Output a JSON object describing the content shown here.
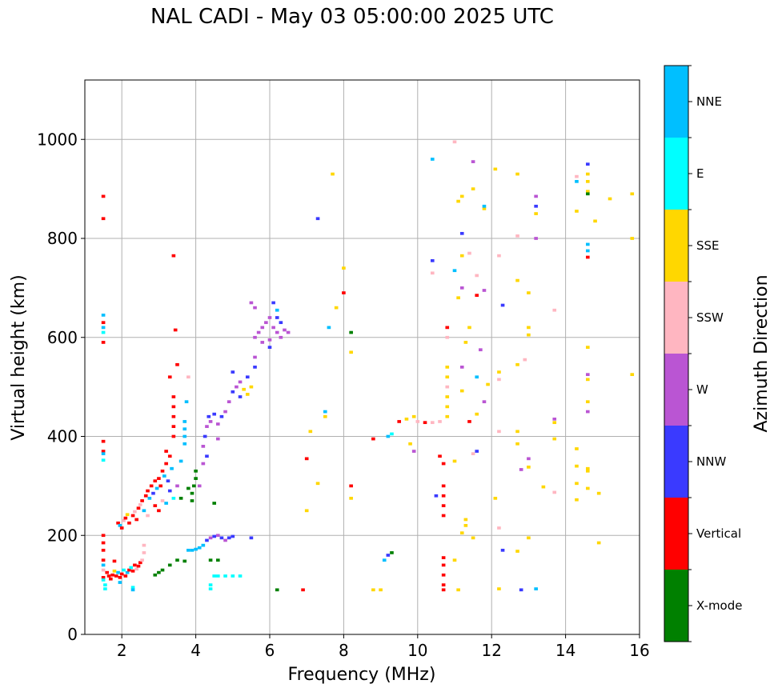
{
  "chart_data": {
    "type": "scatter",
    "title": "NAL CADI - May 03 05:00:00 2025 UTC",
    "xlabel": "Frequency (MHz)",
    "ylabel": "Virtual height (km)",
    "xlim": [
      1,
      16
    ],
    "ylim": [
      0,
      1120
    ],
    "xticks": [
      2,
      4,
      6,
      8,
      10,
      12,
      14,
      16
    ],
    "yticks": [
      0,
      200,
      400,
      600,
      800,
      1000
    ],
    "grid": true,
    "colorbar": {
      "label": "Azimuth Direction",
      "categories": [
        "X-mode",
        "Vertical",
        "NNW",
        "W",
        "SSW",
        "SSE",
        "E",
        "NNE"
      ],
      "colors": [
        "#008000",
        "#ff0000",
        "#3a3aff",
        "#ba55d3",
        "#ffb6c1",
        "#ffd700",
        "#00ffff",
        "#00bfff"
      ]
    },
    "point_format": [
      "frequency_mhz",
      "height_km",
      "direction_index"
    ],
    "points": [
      [
        1.5,
        885,
        1
      ],
      [
        1.5,
        840,
        1
      ],
      [
        1.5,
        645,
        7
      ],
      [
        1.5,
        630,
        1
      ],
      [
        1.5,
        620,
        7
      ],
      [
        1.5,
        610,
        6
      ],
      [
        1.5,
        590,
        1
      ],
      [
        1.5,
        390,
        1
      ],
      [
        1.5,
        370,
        1
      ],
      [
        1.5,
        365,
        7
      ],
      [
        1.5,
        352,
        6
      ],
      [
        1.5,
        200,
        1
      ],
      [
        1.5,
        185,
        1
      ],
      [
        1.5,
        170,
        1
      ],
      [
        1.5,
        150,
        1
      ],
      [
        1.5,
        140,
        7
      ],
      [
        1.5,
        130,
        4
      ],
      [
        1.5,
        115,
        1
      ],
      [
        1.5,
        110,
        6
      ],
      [
        1.55,
        100,
        6
      ],
      [
        1.55,
        92,
        6
      ],
      [
        1.6,
        125,
        1
      ],
      [
        1.65,
        118,
        1
      ],
      [
        1.7,
        112,
        1
      ],
      [
        1.75,
        120,
        1
      ],
      [
        1.8,
        128,
        5
      ],
      [
        1.85,
        118,
        1
      ],
      [
        1.9,
        125,
        7
      ],
      [
        1.95,
        115,
        1
      ],
      [
        2.0,
        122,
        1
      ],
      [
        2.05,
        130,
        6
      ],
      [
        2.1,
        118,
        1
      ],
      [
        2.15,
        125,
        7
      ],
      [
        2.2,
        130,
        1
      ],
      [
        2.25,
        135,
        6
      ],
      [
        2.3,
        128,
        1
      ],
      [
        2.35,
        140,
        1
      ],
      [
        2.4,
        132,
        4
      ],
      [
        2.45,
        138,
        1
      ],
      [
        2.5,
        145,
        1
      ],
      [
        2.55,
        150,
        4
      ],
      [
        2.6,
        165,
        4
      ],
      [
        2.6,
        180,
        4
      ],
      [
        1.8,
        148,
        1
      ],
      [
        1.95,
        105,
        7
      ],
      [
        2.3,
        95,
        6
      ],
      [
        2.3,
        90,
        7
      ],
      [
        1.9,
        225,
        1
      ],
      [
        1.95,
        220,
        7
      ],
      [
        2.0,
        215,
        1
      ],
      [
        2.05,
        230,
        4
      ],
      [
        2.1,
        235,
        1
      ],
      [
        2.15,
        242,
        5
      ],
      [
        2.2,
        225,
        1
      ],
      [
        2.3,
        240,
        1
      ],
      [
        2.35,
        248,
        4
      ],
      [
        2.4,
        232,
        1
      ],
      [
        2.45,
        255,
        1
      ],
      [
        2.5,
        262,
        4
      ],
      [
        2.55,
        270,
        1
      ],
      [
        2.6,
        250,
        7
      ],
      [
        2.65,
        280,
        1
      ],
      [
        2.7,
        290,
        1
      ],
      [
        2.75,
        275,
        7
      ],
      [
        2.8,
        300,
        1
      ],
      [
        2.85,
        285,
        2
      ],
      [
        2.9,
        310,
        1
      ],
      [
        2.95,
        295,
        7
      ],
      [
        3.0,
        315,
        1
      ],
      [
        3.05,
        300,
        1
      ],
      [
        3.1,
        330,
        1
      ],
      [
        3.15,
        320,
        7
      ],
      [
        3.2,
        345,
        1
      ],
      [
        3.25,
        310,
        2
      ],
      [
        3.3,
        360,
        1
      ],
      [
        3.35,
        335,
        7
      ],
      [
        2.7,
        240,
        4
      ],
      [
        2.9,
        260,
        1
      ],
      [
        3.0,
        250,
        1
      ],
      [
        3.1,
        270,
        4
      ],
      [
        3.2,
        265,
        7
      ],
      [
        3.3,
        290,
        2
      ],
      [
        3.4,
        275,
        6
      ],
      [
        3.5,
        300,
        3
      ],
      [
        3.4,
        400,
        1
      ],
      [
        3.4,
        420,
        1
      ],
      [
        3.4,
        440,
        1
      ],
      [
        3.4,
        460,
        1
      ],
      [
        3.4,
        480,
        1
      ],
      [
        3.5,
        545,
        1
      ],
      [
        3.45,
        615,
        1
      ],
      [
        3.4,
        765,
        1
      ],
      [
        3.3,
        520,
        1
      ],
      [
        3.2,
        370,
        1
      ],
      [
        3.7,
        385,
        7
      ],
      [
        3.7,
        400,
        7
      ],
      [
        3.7,
        415,
        7
      ],
      [
        3.7,
        430,
        7
      ],
      [
        3.6,
        350,
        7
      ],
      [
        3.75,
        470,
        7
      ],
      [
        3.8,
        520,
        4
      ],
      [
        3.9,
        270,
        0
      ],
      [
        3.9,
        285,
        0
      ],
      [
        3.95,
        300,
        0
      ],
      [
        4.0,
        315,
        0
      ],
      [
        4.0,
        330,
        0
      ],
      [
        3.8,
        295,
        0
      ],
      [
        3.6,
        275,
        0
      ],
      [
        4.5,
        265,
        0
      ],
      [
        4.1,
        300,
        3
      ],
      [
        3.0,
        125,
        0
      ],
      [
        3.1,
        130,
        0
      ],
      [
        3.3,
        140,
        0
      ],
      [
        3.5,
        150,
        0
      ],
      [
        3.7,
        148,
        0
      ],
      [
        2.9,
        120,
        0
      ],
      [
        3.8,
        170,
        7
      ],
      [
        3.9,
        170,
        7
      ],
      [
        4.0,
        172,
        7
      ],
      [
        4.1,
        175,
        7
      ],
      [
        4.2,
        180,
        7
      ],
      [
        4.3,
        190,
        2
      ],
      [
        4.4,
        195,
        3
      ],
      [
        4.5,
        198,
        2
      ],
      [
        4.6,
        200,
        3
      ],
      [
        4.7,
        195,
        2
      ],
      [
        4.8,
        190,
        3
      ],
      [
        4.9,
        195,
        2
      ],
      [
        5.0,
        198,
        2
      ],
      [
        5.5,
        195,
        2
      ],
      [
        4.4,
        150,
        0
      ],
      [
        4.6,
        150,
        0
      ],
      [
        4.5,
        118,
        6
      ],
      [
        4.6,
        118,
        6
      ],
      [
        4.8,
        118,
        6
      ],
      [
        5.0,
        118,
        6
      ],
      [
        5.2,
        118,
        6
      ],
      [
        4.4,
        100,
        6
      ],
      [
        4.4,
        92,
        6
      ],
      [
        4.2,
        380,
        3
      ],
      [
        4.25,
        400,
        2
      ],
      [
        4.3,
        420,
        3
      ],
      [
        4.35,
        440,
        2
      ],
      [
        4.4,
        430,
        3
      ],
      [
        4.5,
        445,
        2
      ],
      [
        4.6,
        425,
        3
      ],
      [
        4.7,
        440,
        2
      ],
      [
        4.8,
        450,
        3
      ],
      [
        4.3,
        360,
        2
      ],
      [
        4.2,
        345,
        3
      ],
      [
        4.6,
        395,
        3
      ],
      [
        4.9,
        470,
        3
      ],
      [
        5.0,
        490,
        2
      ],
      [
        5.1,
        500,
        3
      ],
      [
        5.2,
        510,
        3
      ],
      [
        5.3,
        495,
        5
      ],
      [
        5.4,
        485,
        5
      ],
      [
        5.5,
        500,
        5
      ],
      [
        5.2,
        480,
        2
      ],
      [
        5.4,
        520,
        2
      ],
      [
        5.6,
        560,
        3
      ],
      [
        5.0,
        530,
        2
      ],
      [
        5.6,
        540,
        2
      ],
      [
        5.6,
        600,
        3
      ],
      [
        5.7,
        610,
        3
      ],
      [
        5.8,
        620,
        3
      ],
      [
        5.9,
        630,
        3
      ],
      [
        6.0,
        640,
        3
      ],
      [
        6.1,
        620,
        3
      ],
      [
        6.2,
        610,
        3
      ],
      [
        6.3,
        600,
        3
      ],
      [
        5.8,
        590,
        3
      ],
      [
        6.0,
        595,
        3
      ],
      [
        6.2,
        640,
        2
      ],
      [
        6.4,
        615,
        3
      ],
      [
        6.5,
        610,
        3
      ],
      [
        5.6,
        660,
        3
      ],
      [
        6.1,
        670,
        2
      ],
      [
        6.2,
        655,
        7
      ],
      [
        5.5,
        670,
        3
      ],
      [
        6.3,
        630,
        2
      ],
      [
        6.0,
        580,
        2
      ],
      [
        7.3,
        840,
        2
      ],
      [
        7.7,
        930,
        5
      ],
      [
        7.6,
        620,
        7
      ],
      [
        7.8,
        660,
        5
      ],
      [
        8.0,
        740,
        5
      ],
      [
        8.0,
        690,
        1
      ],
      [
        8.2,
        610,
        0
      ],
      [
        8.2,
        570,
        5
      ],
      [
        7.5,
        450,
        7
      ],
      [
        7.5,
        440,
        5
      ],
      [
        7.1,
        410,
        5
      ],
      [
        7.0,
        355,
        1
      ],
      [
        7.3,
        305,
        5
      ],
      [
        7.0,
        250,
        5
      ],
      [
        8.2,
        300,
        1
      ],
      [
        8.2,
        275,
        5
      ],
      [
        6.9,
        90,
        1
      ],
      [
        6.2,
        90,
        0
      ],
      [
        8.8,
        395,
        1
      ],
      [
        9.2,
        400,
        7
      ],
      [
        9.3,
        405,
        6
      ],
      [
        9.5,
        430,
        1
      ],
      [
        9.7,
        435,
        5
      ],
      [
        9.9,
        440,
        5
      ],
      [
        10.0,
        430,
        4
      ],
      [
        10.2,
        428,
        1
      ],
      [
        10.4,
        428,
        4
      ],
      [
        10.6,
        430,
        4
      ],
      [
        9.8,
        385,
        5
      ],
      [
        9.9,
        370,
        3
      ],
      [
        10.7,
        300,
        1
      ],
      [
        10.7,
        280,
        1
      ],
      [
        10.7,
        260,
        1
      ],
      [
        10.7,
        240,
        1
      ],
      [
        10.7,
        155,
        1
      ],
      [
        10.7,
        140,
        1
      ],
      [
        10.7,
        120,
        1
      ],
      [
        10.7,
        100,
        1
      ],
      [
        10.7,
        90,
        1
      ],
      [
        10.6,
        360,
        1
      ],
      [
        10.7,
        345,
        1
      ],
      [
        10.5,
        280,
        2
      ],
      [
        10.8,
        440,
        5
      ],
      [
        10.8,
        460,
        5
      ],
      [
        10.8,
        480,
        5
      ],
      [
        10.8,
        500,
        4
      ],
      [
        10.8,
        520,
        5
      ],
      [
        10.8,
        540,
        5
      ],
      [
        10.8,
        600,
        4
      ],
      [
        10.8,
        620,
        1
      ],
      [
        11.4,
        620,
        5
      ],
      [
        11.4,
        430,
        1
      ],
      [
        11.3,
        590,
        5
      ],
      [
        10.4,
        960,
        7
      ],
      [
        10.4,
        755,
        2
      ],
      [
        10.4,
        730,
        4
      ],
      [
        11.0,
        995,
        4
      ],
      [
        11.5,
        955,
        3
      ],
      [
        11.2,
        885,
        5
      ],
      [
        11.5,
        900,
        5
      ],
      [
        11.1,
        875,
        5
      ],
      [
        12.1,
        940,
        5
      ],
      [
        12.7,
        930,
        5
      ],
      [
        11.2,
        810,
        2
      ],
      [
        11.2,
        765,
        5
      ],
      [
        11.4,
        770,
        4
      ],
      [
        11.0,
        735,
        7
      ],
      [
        11.8,
        860,
        5
      ],
      [
        11.8,
        865,
        7
      ],
      [
        11.6,
        725,
        4
      ],
      [
        11.8,
        695,
        3
      ],
      [
        11.6,
        685,
        1
      ],
      [
        11.1,
        680,
        5
      ],
      [
        11.2,
        700,
        3
      ],
      [
        12.7,
        805,
        4
      ],
      [
        12.2,
        765,
        4
      ],
      [
        12.7,
        715,
        5
      ],
      [
        12.3,
        665,
        2
      ],
      [
        13.0,
        690,
        5
      ],
      [
        13.2,
        885,
        3
      ],
      [
        13.2,
        865,
        2
      ],
      [
        13.2,
        850,
        5
      ],
      [
        13.2,
        800,
        3
      ],
      [
        13.7,
        655,
        4
      ],
      [
        11.7,
        575,
        3
      ],
      [
        11.6,
        520,
        7
      ],
      [
        11.2,
        540,
        3
      ],
      [
        11.2,
        492,
        5
      ],
      [
        11.8,
        470,
        3
      ],
      [
        11.6,
        445,
        5
      ],
      [
        11.9,
        505,
        5
      ],
      [
        12.2,
        530,
        5
      ],
      [
        12.2,
        515,
        4
      ],
      [
        12.7,
        545,
        5
      ],
      [
        13.0,
        620,
        5
      ],
      [
        13.0,
        605,
        5
      ],
      [
        12.9,
        555,
        4
      ],
      [
        12.2,
        410,
        4
      ],
      [
        12.7,
        410,
        5
      ],
      [
        12.7,
        385,
        5
      ],
      [
        13.0,
        355,
        3
      ],
      [
        13.0,
        338,
        5
      ],
      [
        12.8,
        333,
        3
      ],
      [
        13.4,
        298,
        5
      ],
      [
        13.7,
        287,
        4
      ],
      [
        13.7,
        435,
        3
      ],
      [
        13.7,
        428,
        5
      ],
      [
        13.7,
        395,
        5
      ],
      [
        11.6,
        370,
        2
      ],
      [
        11.5,
        365,
        4
      ],
      [
        11.0,
        350,
        5
      ],
      [
        11.3,
        232,
        5
      ],
      [
        11.3,
        220,
        5
      ],
      [
        11.2,
        205,
        5
      ],
      [
        11.5,
        195,
        5
      ],
      [
        12.1,
        275,
        5
      ],
      [
        12.2,
        215,
        4
      ],
      [
        12.3,
        170,
        2
      ],
      [
        12.7,
        168,
        5
      ],
      [
        13.0,
        195,
        5
      ],
      [
        12.2,
        92,
        5
      ],
      [
        12.8,
        90,
        2
      ],
      [
        13.2,
        92,
        7
      ],
      [
        11.1,
        90,
        5
      ],
      [
        11.0,
        150,
        5
      ],
      [
        9.2,
        160,
        2
      ],
      [
        9.3,
        165,
        0
      ],
      [
        9.1,
        150,
        7
      ],
      [
        9.0,
        90,
        5
      ],
      [
        8.8,
        90,
        5
      ],
      [
        14.3,
        925,
        4
      ],
      [
        14.3,
        915,
        7
      ],
      [
        14.6,
        950,
        2
      ],
      [
        14.6,
        930,
        5
      ],
      [
        14.6,
        915,
        5
      ],
      [
        14.6,
        895,
        5
      ],
      [
        14.6,
        890,
        0
      ],
      [
        14.8,
        835,
        5
      ],
      [
        15.2,
        880,
        5
      ],
      [
        15.8,
        890,
        5
      ],
      [
        15.8,
        800,
        5
      ],
      [
        14.3,
        855,
        5
      ],
      [
        14.6,
        788,
        7
      ],
      [
        14.6,
        775,
        7
      ],
      [
        14.6,
        762,
        1
      ],
      [
        14.6,
        580,
        5
      ],
      [
        14.6,
        525,
        3
      ],
      [
        14.6,
        515,
        5
      ],
      [
        14.6,
        470,
        5
      ],
      [
        14.6,
        450,
        3
      ],
      [
        15.8,
        525,
        5
      ],
      [
        14.3,
        375,
        5
      ],
      [
        14.3,
        340,
        5
      ],
      [
        14.6,
        335,
        5
      ],
      [
        14.6,
        330,
        5
      ],
      [
        14.3,
        305,
        5
      ],
      [
        14.6,
        295,
        5
      ],
      [
        14.9,
        285,
        5
      ],
      [
        14.3,
        272,
        5
      ],
      [
        14.9,
        185,
        5
      ]
    ]
  }
}
